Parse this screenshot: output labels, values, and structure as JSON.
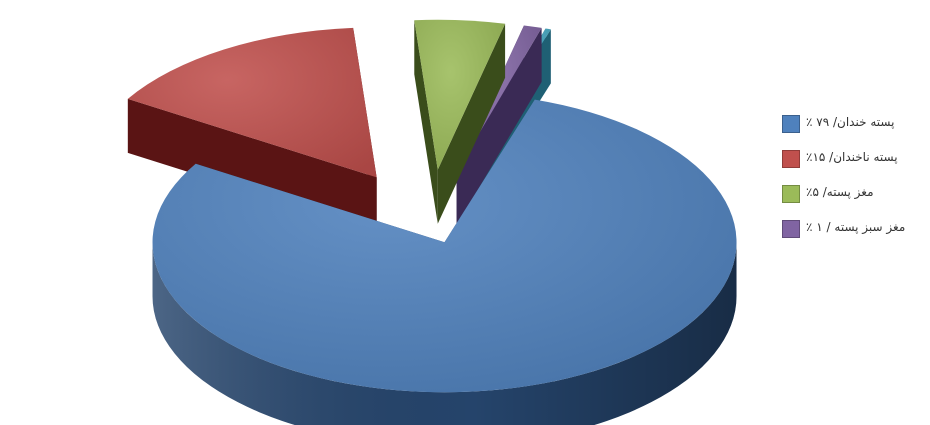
{
  "chart_data": {
    "type": "pie",
    "style": "3d-exploded",
    "title": "",
    "categories": [
      "پسته خندان",
      "پسته ناخندان",
      "مغز پسته",
      "مغز سبز پسته",
      ""
    ],
    "values": [
      79,
      15,
      5,
      1,
      0.3
    ],
    "colors": {
      "top": [
        "#4F81BD",
        "#C0504D",
        "#9BBB59",
        "#8064A2",
        "#4BACC6"
      ],
      "side": [
        "#25446B",
        "#5A1414",
        "#3A4D1B",
        "#3A2A55",
        "#1F6074"
      ]
    },
    "legend": {
      "position": "right",
      "entries": [
        {
          "label": "پسته خندان/ ۷۹ ٪",
          "color": "#4F81BD"
        },
        {
          "label": "پسته ناخندان/ ۱۵٪",
          "color": "#C0504D"
        },
        {
          "label": "مغز پسته/ ۵٪",
          "color": "#9BBB59"
        },
        {
          "label": "مغز سبز پسته / ۱ ٪",
          "color": "#8064A2"
        }
      ]
    }
  }
}
